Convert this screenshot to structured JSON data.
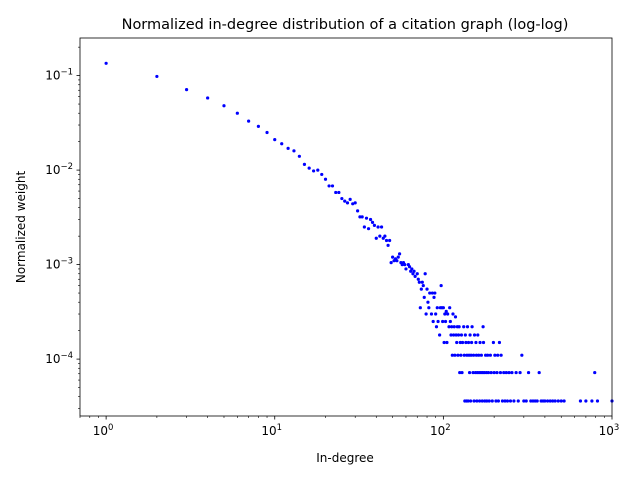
{
  "chart_data": {
    "type": "scatter",
    "title": "Normalized in-degree distribution of a citation graph (log-log)",
    "xlabel": "In-degree",
    "ylabel": "Normalized weight",
    "xscale": "log",
    "yscale": "log",
    "xlim": [
      0.7,
      1000
    ],
    "ylim": [
      2.5e-05,
      0.25
    ],
    "marker_color": "#0000ff",
    "x_major_ticks": [
      {
        "value": 1,
        "base": "10",
        "exp": "0"
      },
      {
        "value": 10,
        "base": "10",
        "exp": "1"
      },
      {
        "value": 100,
        "base": "10",
        "exp": "2"
      },
      {
        "value": 1000,
        "base": "10",
        "exp": "3"
      }
    ],
    "y_major_ticks": [
      {
        "value": 0.0001,
        "base": "10",
        "exp": "−4"
      },
      {
        "value": 0.001,
        "base": "10",
        "exp": "−3"
      },
      {
        "value": 0.01,
        "base": "10",
        "exp": "−2"
      },
      {
        "value": 0.1,
        "base": "10",
        "exp": "−1"
      }
    ],
    "points": [
      [
        1,
        0.135
      ],
      [
        2,
        0.098
      ],
      [
        3,
        0.071
      ],
      [
        4,
        0.058
      ],
      [
        5,
        0.048
      ],
      [
        6,
        0.04
      ],
      [
        7,
        0.033
      ],
      [
        8,
        0.029
      ],
      [
        9,
        0.025
      ],
      [
        10,
        0.021
      ],
      [
        11,
        0.019
      ],
      [
        12,
        0.017
      ],
      [
        13,
        0.016
      ],
      [
        14,
        0.014
      ],
      [
        15,
        0.0115
      ],
      [
        16,
        0.0105
      ],
      [
        17,
        0.0098
      ],
      [
        18,
        0.01
      ],
      [
        19,
        0.009
      ],
      [
        20,
        0.008
      ],
      [
        21,
        0.0068
      ],
      [
        22,
        0.0068
      ],
      [
        23,
        0.0058
      ],
      [
        24,
        0.0058
      ],
      [
        25,
        0.005
      ],
      [
        26,
        0.0047
      ],
      [
        27,
        0.0045
      ],
      [
        28,
        0.0049
      ],
      [
        29,
        0.0044
      ],
      [
        30,
        0.0045
      ],
      [
        31,
        0.0037
      ],
      [
        32,
        0.0032
      ],
      [
        33,
        0.0032
      ],
      [
        34,
        0.0025
      ],
      [
        35,
        0.0031
      ],
      [
        36,
        0.0024
      ],
      [
        37,
        0.003
      ],
      [
        38,
        0.0028
      ],
      [
        39,
        0.0026
      ],
      [
        40,
        0.0019
      ],
      [
        41,
        0.0025
      ],
      [
        42,
        0.002
      ],
      [
        43,
        0.0025
      ],
      [
        44,
        0.0019
      ],
      [
        45,
        0.002
      ],
      [
        46,
        0.0018
      ],
      [
        47,
        0.0016
      ],
      [
        48,
        0.0018
      ],
      [
        49,
        0.00105
      ],
      [
        50,
        0.0012
      ],
      [
        51,
        0.0011
      ],
      [
        52,
        0.00115
      ],
      [
        53,
        0.0011
      ],
      [
        54,
        0.0012
      ],
      [
        55,
        0.0013
      ],
      [
        56,
        0.00105
      ],
      [
        57,
        0.001
      ],
      [
        58,
        0.00105
      ],
      [
        59,
        0.001
      ],
      [
        60,
        0.0009
      ],
      [
        62,
        0.001
      ],
      [
        63,
        0.00095
      ],
      [
        64,
        0.00085
      ],
      [
        65,
        0.0009
      ],
      [
        66,
        0.0008
      ],
      [
        67,
        0.00085
      ],
      [
        68,
        0.00075
      ],
      [
        70,
        0.0008
      ],
      [
        71,
        0.0007
      ],
      [
        72,
        0.00065
      ],
      [
        73,
        0.00035
      ],
      [
        74,
        0.00055
      ],
      [
        75,
        0.00065
      ],
      [
        76,
        0.0006
      ],
      [
        77,
        0.00045
      ],
      [
        78,
        0.0008
      ],
      [
        79,
        0.0003
      ],
      [
        80,
        0.00055
      ],
      [
        81,
        0.0004
      ],
      [
        82,
        0.00035
      ],
      [
        83,
        0.0005
      ],
      [
        85,
        0.0003
      ],
      [
        86,
        0.0005
      ],
      [
        87,
        0.00025
      ],
      [
        88,
        0.00045
      ],
      [
        89,
        0.0005
      ],
      [
        90,
        0.0003
      ],
      [
        91,
        0.00022
      ],
      [
        92,
        0.00035
      ],
      [
        93,
        0.00025
      ],
      [
        95,
        0.00018
      ],
      [
        96,
        0.00035
      ],
      [
        97,
        0.0006
      ],
      [
        98,
        0.00035
      ],
      [
        99,
        0.00025
      ],
      [
        100,
        0.00035
      ],
      [
        101,
        0.00015
      ],
      [
        102,
        0.0003
      ],
      [
        103,
        0.00025
      ],
      [
        104,
        0.00032
      ],
      [
        105,
        0.00015
      ],
      [
        106,
        0.0003
      ],
      [
        108,
        0.00022
      ],
      [
        109,
        0.00035
      ],
      [
        110,
        0.00025
      ],
      [
        111,
        0.00018
      ],
      [
        112,
        0.00022
      ],
      [
        113,
        0.00011
      ],
      [
        114,
        0.0003
      ],
      [
        115,
        0.00018
      ],
      [
        116,
        0.00022
      ],
      [
        117,
        0.00011
      ],
      [
        118,
        0.00028
      ],
      [
        119,
        0.00018
      ],
      [
        120,
        0.00015
      ],
      [
        121,
        0.00022
      ],
      [
        122,
        0.00011
      ],
      [
        123,
        0.00018
      ],
      [
        124,
        0.00022
      ],
      [
        125,
        7.2e-05
      ],
      [
        126,
        0.00015
      ],
      [
        127,
        0.00011
      ],
      [
        128,
        0.00018
      ],
      [
        129,
        7.2e-05
      ],
      [
        130,
        0.00015
      ],
      [
        132,
        0.00022
      ],
      [
        133,
        0.00011
      ],
      [
        134,
        3.6e-05
      ],
      [
        135,
        0.00018
      ],
      [
        136,
        0.00015
      ],
      [
        137,
        3.6e-05
      ],
      [
        138,
        0.00011
      ],
      [
        139,
        0.00022
      ],
      [
        140,
        3.6e-05
      ],
      [
        141,
        0.00015
      ],
      [
        142,
        0.00011
      ],
      [
        143,
        7.2e-05
      ],
      [
        144,
        0.00018
      ],
      [
        145,
        3.6e-05
      ],
      [
        146,
        0.00011
      ],
      [
        147,
        0.00015
      ],
      [
        148,
        0.00022
      ],
      [
        150,
        7.2e-05
      ],
      [
        151,
        0.00011
      ],
      [
        152,
        3.6e-05
      ],
      [
        153,
        0.00018
      ],
      [
        155,
        7.2e-05
      ],
      [
        156,
        0.00015
      ],
      [
        157,
        0.00011
      ],
      [
        158,
        3.6e-05
      ],
      [
        159,
        7.2e-05
      ],
      [
        160,
        0.00018
      ],
      [
        162,
        0.00011
      ],
      [
        163,
        7.2e-05
      ],
      [
        164,
        3.6e-05
      ],
      [
        165,
        0.00015
      ],
      [
        167,
        7.2e-05
      ],
      [
        168,
        0.00011
      ],
      [
        170,
        3.6e-05
      ],
      [
        171,
        7.2e-05
      ],
      [
        172,
        0.00022
      ],
      [
        173,
        0.00015
      ],
      [
        175,
        7.2e-05
      ],
      [
        176,
        3.6e-05
      ],
      [
        178,
        0.00011
      ],
      [
        180,
        7.2e-05
      ],
      [
        181,
        3.6e-05
      ],
      [
        183,
        0.00011
      ],
      [
        185,
        7.2e-05
      ],
      [
        187,
        3.6e-05
      ],
      [
        190,
        0.00011
      ],
      [
        192,
        7.2e-05
      ],
      [
        195,
        3.6e-05
      ],
      [
        198,
        0.00015
      ],
      [
        200,
        7.2e-05
      ],
      [
        202,
        0.00011
      ],
      [
        205,
        3.6e-05
      ],
      [
        208,
        7.2e-05
      ],
      [
        210,
        0.00011
      ],
      [
        212,
        3.6e-05
      ],
      [
        215,
        0.00015
      ],
      [
        218,
        7.2e-05
      ],
      [
        220,
        0.00011
      ],
      [
        224,
        3.6e-05
      ],
      [
        228,
        7.2e-05
      ],
      [
        232,
        3.6e-05
      ],
      [
        236,
        7.2e-05
      ],
      [
        240,
        3.6e-05
      ],
      [
        245,
        7.2e-05
      ],
      [
        250,
        3.6e-05
      ],
      [
        255,
        7.2e-05
      ],
      [
        262,
        3.6e-05
      ],
      [
        270,
        7.2e-05
      ],
      [
        278,
        3.6e-05
      ],
      [
        285,
        7.2e-05
      ],
      [
        292,
        0.00011
      ],
      [
        300,
        3.6e-05
      ],
      [
        310,
        3.6e-05
      ],
      [
        320,
        7.2e-05
      ],
      [
        330,
        3.6e-05
      ],
      [
        340,
        3.6e-05
      ],
      [
        350,
        3.6e-05
      ],
      [
        360,
        3.6e-05
      ],
      [
        370,
        7.2e-05
      ],
      [
        380,
        3.6e-05
      ],
      [
        390,
        3.6e-05
      ],
      [
        400,
        3.6e-05
      ],
      [
        415,
        3.6e-05
      ],
      [
        430,
        3.6e-05
      ],
      [
        445,
        3.6e-05
      ],
      [
        460,
        3.6e-05
      ],
      [
        480,
        3.6e-05
      ],
      [
        500,
        3.6e-05
      ],
      [
        520,
        3.6e-05
      ],
      [
        650,
        3.6e-05
      ],
      [
        700,
        3.6e-05
      ],
      [
        760,
        3.6e-05
      ],
      [
        790,
        7.2e-05
      ],
      [
        820,
        3.6e-05
      ],
      [
        1000,
        3.6e-05
      ]
    ]
  }
}
